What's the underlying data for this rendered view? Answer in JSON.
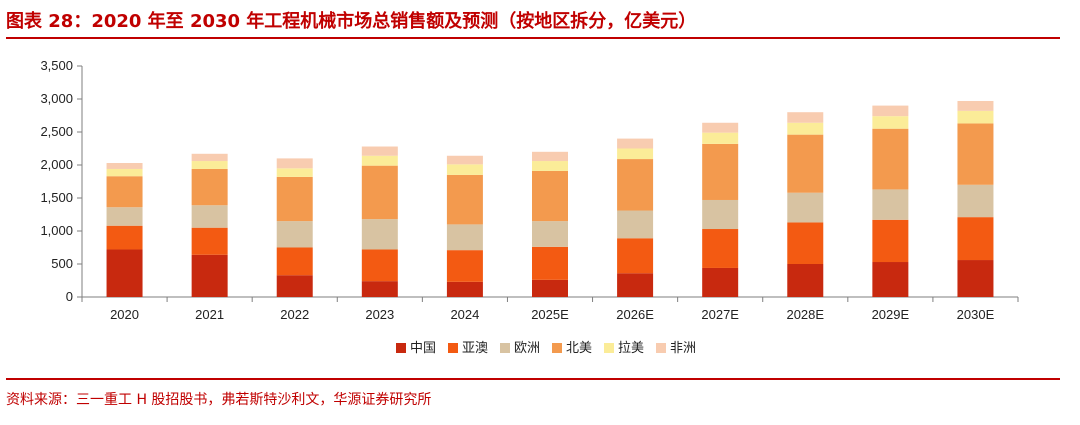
{
  "header": {
    "title": "图表 28：2020 年至 2030 年工程机械市场总销售额及预测（按地区拆分，亿美元）"
  },
  "footer": {
    "source": "资料来源：三一重工 H 股招股书，弗若斯特沙利文，华源证券研究所"
  },
  "chart_data": {
    "type": "bar",
    "stacked": true,
    "title": "2020 年至 2030 年工程机械市场总销售额及预测（按地区拆分，亿美元）",
    "xlabel": "",
    "ylabel": "",
    "ylim": [
      0,
      3500
    ],
    "yticks": [
      0,
      500,
      1000,
      1500,
      2000,
      2500,
      3000,
      3500
    ],
    "ytick_labels": [
      "0",
      "500",
      "1,000",
      "1,500",
      "2,000",
      "2,500",
      "3,000",
      "3,500"
    ],
    "grid": false,
    "legend_position": "bottom",
    "categories": [
      "2020",
      "2021",
      "2022",
      "2023",
      "2024",
      "2025E",
      "2026E",
      "2027E",
      "2028E",
      "2029E",
      "2030E"
    ],
    "series": [
      {
        "name": "中国",
        "color": "#c8290f",
        "values": [
          720,
          640,
          330,
          240,
          230,
          260,
          360,
          440,
          500,
          530,
          560
        ]
      },
      {
        "name": "亚澳",
        "color": "#f35a12",
        "values": [
          360,
          410,
          420,
          480,
          480,
          500,
          530,
          590,
          630,
          640,
          650
        ]
      },
      {
        "name": "欧洲",
        "color": "#d8c3a2",
        "values": [
          280,
          340,
          400,
          460,
          390,
          390,
          420,
          440,
          450,
          460,
          490
        ]
      },
      {
        "name": "北美",
        "color": "#f39a4e",
        "values": [
          470,
          550,
          670,
          810,
          750,
          760,
          780,
          850,
          880,
          920,
          930
        ]
      },
      {
        "name": "拉美",
        "color": "#fbec98",
        "values": [
          110,
          120,
          130,
          150,
          160,
          150,
          160,
          170,
          180,
          190,
          190
        ]
      },
      {
        "name": "非洲",
        "color": "#f8ccb0",
        "values": [
          90,
          110,
          150,
          140,
          130,
          140,
          150,
          150,
          160,
          160,
          150
        ]
      }
    ]
  }
}
